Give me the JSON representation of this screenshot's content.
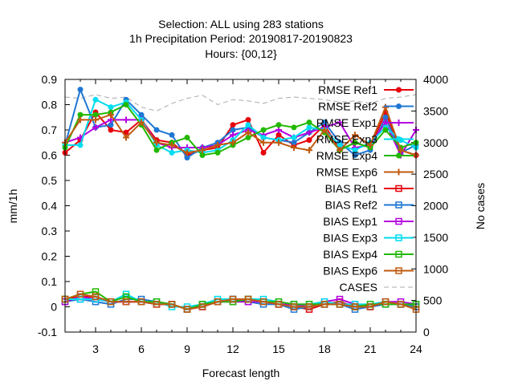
{
  "chart_data": {
    "type": "line",
    "title_lines": [
      "Selection: ALL using   283 stations",
      "1h Precipitation   Period: 20190817-20190823",
      "Hours: {00,12}"
    ],
    "xlabel": "Forecast length",
    "ylabel": "mm/1h",
    "y2label": "No cases",
    "xlim": [
      1,
      24
    ],
    "ylim": [
      -0.1,
      0.9
    ],
    "y2lim": [
      0,
      4000
    ],
    "xticks": [
      3,
      6,
      9,
      12,
      15,
      18,
      21,
      24
    ],
    "yticks": [
      -0.1,
      0,
      0.1,
      0.2,
      0.3,
      0.4,
      0.5,
      0.6,
      0.7,
      0.8,
      0.9
    ],
    "y2ticks": [
      0,
      500,
      1000,
      1500,
      2000,
      2500,
      3000,
      3500,
      4000
    ],
    "legend_position": "top-right",
    "x": [
      1,
      2,
      3,
      4,
      5,
      6,
      7,
      8,
      9,
      10,
      11,
      12,
      13,
      14,
      15,
      16,
      17,
      18,
      19,
      20,
      21,
      22,
      23,
      24
    ],
    "series": [
      {
        "name": "RMSE Ref1",
        "color": "#e8000b",
        "marker": "circle",
        "axis": "y1",
        "values": [
          0.61,
          0.66,
          0.77,
          0.7,
          0.69,
          0.74,
          0.66,
          0.65,
          0.6,
          0.62,
          0.63,
          0.72,
          0.74,
          0.61,
          0.68,
          0.64,
          0.66,
          0.72,
          0.62,
          0.65,
          0.63,
          0.77,
          0.62,
          0.6
        ]
      },
      {
        "name": "RMSE Ref2",
        "color": "#1f77d4",
        "marker": "circle",
        "axis": "y1",
        "values": [
          0.64,
          0.86,
          0.71,
          0.72,
          0.82,
          0.76,
          0.7,
          0.68,
          0.59,
          0.63,
          0.65,
          0.7,
          0.71,
          0.67,
          0.66,
          0.65,
          0.69,
          0.73,
          0.65,
          0.6,
          0.62,
          0.75,
          0.61,
          0.64
        ]
      },
      {
        "name": "RMSE Exp1",
        "color": "#b400e0",
        "marker": "plus",
        "axis": "y1",
        "values": [
          0.65,
          0.67,
          0.71,
          0.74,
          0.74,
          0.74,
          0.65,
          0.63,
          0.63,
          0.63,
          0.64,
          0.68,
          0.7,
          0.68,
          0.7,
          0.67,
          0.69,
          0.71,
          0.73,
          0.63,
          0.64,
          0.73,
          0.6,
          0.7
        ]
      },
      {
        "name": "RMSE Exp3",
        "color": "#00dcf0",
        "marker": "circle",
        "axis": "y1",
        "values": [
          0.64,
          0.64,
          0.82,
          0.79,
          0.81,
          0.74,
          0.64,
          0.61,
          0.62,
          0.61,
          0.62,
          0.66,
          0.72,
          0.67,
          0.66,
          0.67,
          0.71,
          0.7,
          0.64,
          0.62,
          0.65,
          0.71,
          0.66,
          0.63
        ]
      },
      {
        "name": "RMSE Exp4",
        "color": "#22b800",
        "marker": "circle",
        "axis": "y1",
        "values": [
          0.63,
          0.76,
          0.76,
          0.77,
          0.8,
          0.72,
          0.62,
          0.65,
          0.67,
          0.6,
          0.61,
          0.64,
          0.67,
          0.7,
          0.72,
          0.71,
          0.73,
          0.69,
          0.62,
          0.65,
          0.63,
          0.7,
          0.63,
          0.65
        ]
      },
      {
        "name": "RMSE Exp6",
        "color": "#c05a10",
        "marker": "plus",
        "axis": "y1",
        "values": [
          0.65,
          0.74,
          0.74,
          0.76,
          0.67,
          0.73,
          0.65,
          0.64,
          0.61,
          0.62,
          0.64,
          0.65,
          0.69,
          0.65,
          0.65,
          0.63,
          0.62,
          0.7,
          0.62,
          0.68,
          0.64,
          0.79,
          0.62,
          0.6
        ]
      },
      {
        "name": "BIAS Ref1",
        "color": "#e8000b",
        "marker": "square",
        "axis": "y1",
        "values": [
          0.03,
          0.04,
          0.04,
          0.02,
          0.02,
          0.02,
          0.01,
          0.01,
          -0.01,
          0.0,
          0.02,
          0.03,
          0.03,
          0.02,
          0.01,
          0.0,
          -0.01,
          0.01,
          0.02,
          0.0,
          0.0,
          0.02,
          0.01,
          0.0
        ]
      },
      {
        "name": "BIAS Ref2",
        "color": "#1f77d4",
        "marker": "square",
        "axis": "y1",
        "values": [
          0.02,
          0.03,
          0.02,
          0.01,
          0.03,
          0.03,
          0.02,
          0.01,
          -0.01,
          0.01,
          0.02,
          0.03,
          0.02,
          0.01,
          0.01,
          -0.01,
          0.0,
          0.01,
          0.01,
          -0.01,
          0.0,
          0.01,
          0.01,
          0.0
        ]
      },
      {
        "name": "BIAS Exp1",
        "color": "#b400e0",
        "marker": "square",
        "axis": "y1",
        "values": [
          0.02,
          0.04,
          0.03,
          0.02,
          0.02,
          0.02,
          0.01,
          0.01,
          -0.01,
          0.0,
          0.02,
          0.02,
          0.02,
          0.02,
          0.01,
          0.01,
          0.0,
          0.02,
          0.03,
          0.01,
          0.0,
          0.02,
          0.02,
          0.01
        ]
      },
      {
        "name": "BIAS Exp3",
        "color": "#00dcf0",
        "marker": "square",
        "axis": "y1",
        "values": [
          0.03,
          0.03,
          0.03,
          0.02,
          0.05,
          0.02,
          0.02,
          0.0,
          0.0,
          0.01,
          0.03,
          0.03,
          0.03,
          0.03,
          0.02,
          0.01,
          0.01,
          0.02,
          0.01,
          0.01,
          0.01,
          0.02,
          0.01,
          0.01
        ]
      },
      {
        "name": "BIAS Exp4",
        "color": "#22b800",
        "marker": "square",
        "axis": "y1",
        "values": [
          0.03,
          0.05,
          0.06,
          0.02,
          0.04,
          0.02,
          0.02,
          0.01,
          -0.01,
          0.01,
          0.02,
          0.02,
          0.03,
          0.02,
          0.02,
          0.01,
          0.01,
          0.01,
          0.01,
          0.0,
          0.01,
          0.01,
          0.01,
          0.01
        ]
      },
      {
        "name": "BIAS Exp6",
        "color": "#c05a10",
        "marker": "square",
        "axis": "y1",
        "values": [
          0.03,
          0.05,
          0.04,
          0.02,
          0.02,
          0.02,
          0.01,
          0.01,
          -0.01,
          0.0,
          0.02,
          0.03,
          0.03,
          0.02,
          0.01,
          0.0,
          0.0,
          0.01,
          0.01,
          0.0,
          0.0,
          0.02,
          0.01,
          -0.01
        ]
      },
      {
        "name": "CASES",
        "color": "#aaaaaa",
        "marker": "none",
        "dashed": true,
        "axis": "y2",
        "values": [
          3720,
          3700,
          3760,
          3700,
          3720,
          3560,
          3500,
          3620,
          3700,
          3750,
          3600,
          3680,
          3660,
          3620,
          3700,
          3720,
          3700,
          3680,
          3640,
          3660,
          3620,
          3700,
          3720,
          3760
        ]
      }
    ]
  }
}
